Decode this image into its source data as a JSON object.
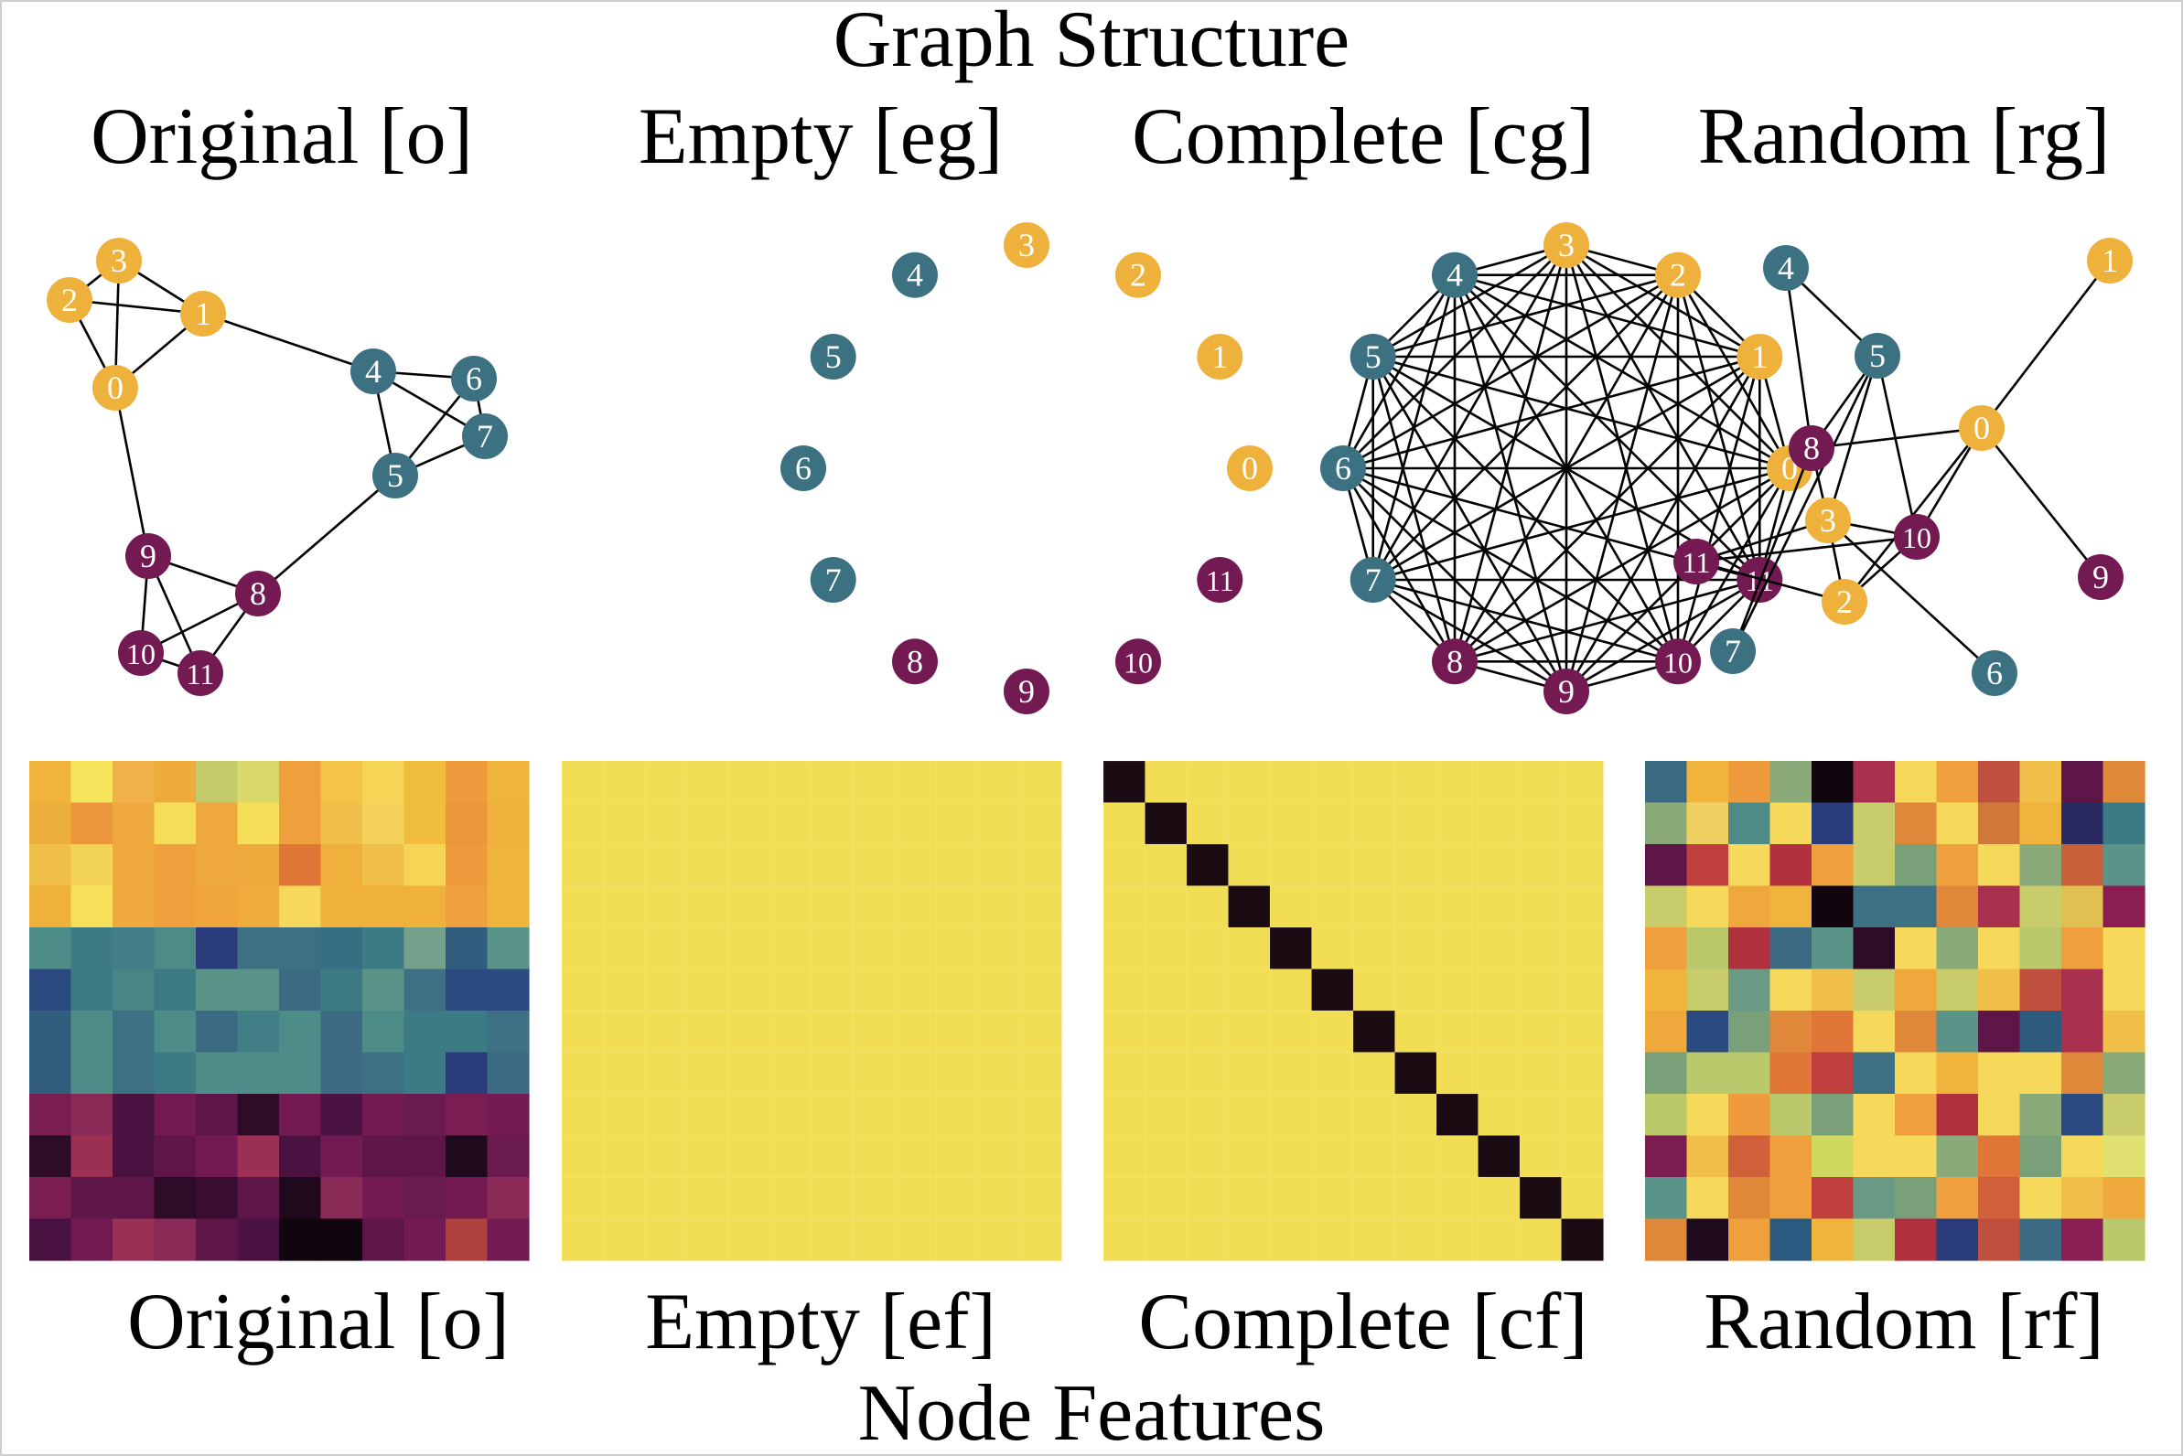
{
  "figure": {
    "top_title": "Graph Structure",
    "bottom_title": "Node Features"
  },
  "colors": {
    "node_group_a": "#eeb23c",
    "node_group_b": "#3c7182",
    "node_group_c": "#741a52",
    "edge": "#000000",
    "empty_fill": "#f2de54",
    "diagonal": "#1b0b12"
  },
  "graph_panels": [
    {
      "key": "original",
      "label": "Original [o]",
      "nodes": [
        {
          "id": "0",
          "group": "a"
        },
        {
          "id": "1",
          "group": "a"
        },
        {
          "id": "2",
          "group": "a"
        },
        {
          "id": "3",
          "group": "a"
        },
        {
          "id": "4",
          "group": "b"
        },
        {
          "id": "5",
          "group": "b"
        },
        {
          "id": "6",
          "group": "b"
        },
        {
          "id": "7",
          "group": "b"
        },
        {
          "id": "8",
          "group": "c"
        },
        {
          "id": "9",
          "group": "c"
        },
        {
          "id": "10",
          "group": "c"
        },
        {
          "id": "11",
          "group": "c"
        }
      ],
      "edges": [
        [
          0,
          1
        ],
        [
          0,
          2
        ],
        [
          0,
          3
        ],
        [
          1,
          2
        ],
        [
          1,
          3
        ],
        [
          2,
          3
        ],
        [
          1,
          4
        ],
        [
          4,
          5
        ],
        [
          4,
          6
        ],
        [
          4,
          7
        ],
        [
          5,
          6
        ],
        [
          5,
          7
        ],
        [
          6,
          7
        ],
        [
          0,
          9
        ],
        [
          5,
          8
        ],
        [
          8,
          9
        ],
        [
          8,
          10
        ],
        [
          8,
          11
        ],
        [
          9,
          10
        ],
        [
          9,
          11
        ],
        [
          10,
          11
        ]
      ]
    },
    {
      "key": "empty",
      "label": "Empty [eg]",
      "nodes": [
        {
          "id": "0",
          "group": "a"
        },
        {
          "id": "1",
          "group": "a"
        },
        {
          "id": "2",
          "group": "a"
        },
        {
          "id": "3",
          "group": "a"
        },
        {
          "id": "4",
          "group": "b"
        },
        {
          "id": "5",
          "group": "b"
        },
        {
          "id": "6",
          "group": "b"
        },
        {
          "id": "7",
          "group": "b"
        },
        {
          "id": "8",
          "group": "c"
        },
        {
          "id": "9",
          "group": "c"
        },
        {
          "id": "10",
          "group": "c"
        },
        {
          "id": "11",
          "group": "c"
        }
      ],
      "edges": []
    },
    {
      "key": "complete",
      "label": "Complete [cg]",
      "nodes": [
        {
          "id": "0",
          "group": "a"
        },
        {
          "id": "1",
          "group": "a"
        },
        {
          "id": "2",
          "group": "a"
        },
        {
          "id": "3",
          "group": "a"
        },
        {
          "id": "4",
          "group": "b"
        },
        {
          "id": "5",
          "group": "b"
        },
        {
          "id": "6",
          "group": "b"
        },
        {
          "id": "7",
          "group": "b"
        },
        {
          "id": "8",
          "group": "c"
        },
        {
          "id": "9",
          "group": "c"
        },
        {
          "id": "10",
          "group": "c"
        },
        {
          "id": "11",
          "group": "c"
        }
      ],
      "edges": "all"
    },
    {
      "key": "random",
      "label": "Random [rg]",
      "nodes": [
        {
          "id": "0",
          "group": "a"
        },
        {
          "id": "1",
          "group": "a"
        },
        {
          "id": "2",
          "group": "a"
        },
        {
          "id": "3",
          "group": "a"
        },
        {
          "id": "4",
          "group": "b"
        },
        {
          "id": "5",
          "group": "b"
        },
        {
          "id": "6",
          "group": "b"
        },
        {
          "id": "7",
          "group": "b"
        },
        {
          "id": "8",
          "group": "c"
        },
        {
          "id": "9",
          "group": "c"
        },
        {
          "id": "10",
          "group": "c"
        },
        {
          "id": "11",
          "group": "c"
        }
      ],
      "edges": [
        [
          0,
          1
        ],
        [
          0,
          8
        ],
        [
          0,
          10
        ],
        [
          0,
          2
        ],
        [
          0,
          9
        ],
        [
          4,
          5
        ],
        [
          4,
          8
        ],
        [
          5,
          8
        ],
        [
          5,
          3
        ],
        [
          5,
          10
        ],
        [
          8,
          3
        ],
        [
          8,
          7
        ],
        [
          3,
          11
        ],
        [
          3,
          10
        ],
        [
          3,
          2
        ],
        [
          3,
          6
        ],
        [
          11,
          2
        ],
        [
          11,
          10
        ],
        [
          7,
          5
        ],
        [
          2,
          10
        ]
      ]
    }
  ],
  "feature_panels": [
    {
      "key": "original",
      "label": "Original [o]",
      "grid": [
        [
          "#f0b43c",
          "#f5e45c",
          "#f0b04a",
          "#efaa3c",
          "#c4cb6a",
          "#d9d86a",
          "#efa03c",
          "#f3c34a",
          "#f5d456",
          "#f0bc3c",
          "#ef9a3c",
          "#f0b43c"
        ],
        [
          "#eeb03c",
          "#ec963c",
          "#efa83c",
          "#f6de5a",
          "#efa83c",
          "#f6de5a",
          "#eea03c",
          "#f0c04a",
          "#f5d25a",
          "#f0be3c",
          "#ec963c",
          "#f0b03c"
        ],
        [
          "#f0c04a",
          "#f3d456",
          "#efa83c",
          "#efa03c",
          "#efa83c",
          "#efaa3c",
          "#e07638",
          "#efb03c",
          "#f0c04a",
          "#f5d456",
          "#ee9a3c",
          "#f0b43c"
        ],
        [
          "#f0b03c",
          "#f6e05a",
          "#efa83c",
          "#efa03c",
          "#efa43c",
          "#efac3c",
          "#f6d85a",
          "#efb03c",
          "#f0b03c",
          "#efb03c",
          "#eea03c",
          "#f0b43c"
        ],
        [
          "#4e8c88",
          "#3c7a84",
          "#427e86",
          "#4e8a86",
          "#2a3c7c",
          "#3c7082",
          "#3c7082",
          "#366e82",
          "#3c7a84",
          "#72a08a",
          "#325c7e",
          "#5a9488"
        ],
        [
          "#2a4a80",
          "#3c7a84",
          "#4a8486",
          "#3c7a84",
          "#5a9488",
          "#5a9488",
          "#3c6a82",
          "#3c7a84",
          "#5a9488",
          "#3c7082",
          "#2a4a80",
          "#2a4a80"
        ],
        [
          "#325e7e",
          "#4e8c88",
          "#3c7082",
          "#4e8c88",
          "#3c6a82",
          "#427e86",
          "#4e8c88",
          "#3c6a82",
          "#4e8c88",
          "#3c7a84",
          "#3c7a84",
          "#3c7082"
        ],
        [
          "#325e7e",
          "#4e8c88",
          "#3c7082",
          "#3c7a84",
          "#4e8c88",
          "#4e8c88",
          "#4e8c88",
          "#3c6a82",
          "#3c7082",
          "#3c7a84",
          "#2a3c7c",
          "#3c6a82"
        ],
        [
          "#7a1e52",
          "#8a2a56",
          "#4a1240",
          "#741a52",
          "#5e1648",
          "#2e0c28",
          "#741a52",
          "#4a1240",
          "#741a52",
          "#6a1a4e",
          "#7a1e52",
          "#741a52"
        ],
        [
          "#2e0c28",
          "#9a3054",
          "#4a1240",
          "#5e1648",
          "#741a52",
          "#9a3054",
          "#4a1240",
          "#741a52",
          "#5e1648",
          "#5e1648",
          "#1e0a1c",
          "#6a1a4e"
        ],
        [
          "#7a1e52",
          "#5e1648",
          "#5e1648",
          "#2e0c28",
          "#3a0e30",
          "#5e1648",
          "#1e0a1c",
          "#8a2a56",
          "#741a52",
          "#6a1a4e",
          "#741a52",
          "#8a2a56"
        ],
        [
          "#4a1240",
          "#741a52",
          "#9a3054",
          "#8a2a56",
          "#5e1648",
          "#4a1240",
          "#12060e",
          "#12060e",
          "#5e1648",
          "#741a52",
          "#b0403e",
          "#741a52"
        ]
      ]
    },
    {
      "key": "empty",
      "label": "Empty [ef]",
      "grid": "uniform"
    },
    {
      "key": "complete",
      "label": "Complete [cf]",
      "grid": "identity"
    },
    {
      "key": "random",
      "label": "Random [rf]",
      "grid": [
        [
          "#3c6a82",
          "#f0b43c",
          "#ef9a3c",
          "#8aaa7a",
          "#12060e",
          "#a8304e",
          "#f6d85a",
          "#efa03c",
          "#c0503e",
          "#f0c04a",
          "#5e1648",
          "#e0883a"
        ],
        [
          "#8aaa7a",
          "#f0d060",
          "#4e8a86",
          "#f6d85a",
          "#2a3c7c",
          "#c8cc6a",
          "#e0883a",
          "#f6d85a",
          "#d07838",
          "#f0b43c",
          "#2a2a60",
          "#3c7a84"
        ],
        [
          "#5e1648",
          "#c0403e",
          "#f6d85a",
          "#b0303e",
          "#efa03c",
          "#c8cc6a",
          "#7aa07a",
          "#efa03c",
          "#f6d85a",
          "#8aaa7a",
          "#c8603a",
          "#5a9488"
        ],
        [
          "#c8cc6a",
          "#f6d85a",
          "#efa83c",
          "#f0b43c",
          "#12060e",
          "#3c7082",
          "#3c7082",
          "#e0883a",
          "#a8304e",
          "#c8cc6a",
          "#e0c050",
          "#8a1e52"
        ],
        [
          "#efa03c",
          "#b8c86a",
          "#b0303e",
          "#3c6a82",
          "#5a9488",
          "#2e0c28",
          "#f6d85a",
          "#8aaa7a",
          "#f6d85a",
          "#b8c86a",
          "#efa03c",
          "#f6d85a"
        ],
        [
          "#f0b43c",
          "#c8cc6a",
          "#6a9a86",
          "#f6d85a",
          "#f0c04a",
          "#c8cc6a",
          "#efa83c",
          "#c8cc6a",
          "#f0c04a",
          "#c0503e",
          "#a8304e",
          "#f6d85a"
        ],
        [
          "#efa83c",
          "#2a4a80",
          "#7aa07a",
          "#e0883a",
          "#e07638",
          "#f6d85a",
          "#e0883a",
          "#5a9488",
          "#5e1648",
          "#2e5a7e",
          "#a8304e",
          "#f0c04a"
        ],
        [
          "#7aa07a",
          "#b8c86a",
          "#b8c86a",
          "#e07638",
          "#c0403e",
          "#3c7082",
          "#f6d85a",
          "#f0b43c",
          "#f6d85a",
          "#f6d85a",
          "#e0883a",
          "#8aaa7a"
        ],
        [
          "#b8c86a",
          "#f6d85a",
          "#ef9a3c",
          "#b8c86a",
          "#7aa07a",
          "#f6d85a",
          "#efa03c",
          "#b0303e",
          "#f6d85a",
          "#8aaa7a",
          "#2a4a80",
          "#c8cc6a"
        ],
        [
          "#7a1e52",
          "#f0c04a",
          "#d0603a",
          "#efa03c",
          "#d0d860",
          "#f6d85a",
          "#f6d85a",
          "#8aaa7a",
          "#e07638",
          "#7aa07a",
          "#f6d85a",
          "#e0e070"
        ],
        [
          "#5a9488",
          "#f6d85a",
          "#e0883a",
          "#efa03c",
          "#c0403e",
          "#6a9a86",
          "#7aa07a",
          "#efa03c",
          "#d0603a",
          "#f6d85a",
          "#f0c04a",
          "#efa83c"
        ],
        [
          "#e0883a",
          "#1e0a1c",
          "#efa03c",
          "#2a5a80",
          "#f0b43c",
          "#c8cc6a",
          "#b0303e",
          "#2a3c7c",
          "#c0503e",
          "#3c6a82",
          "#8a1e52",
          "#b8c86a"
        ]
      ]
    }
  ]
}
